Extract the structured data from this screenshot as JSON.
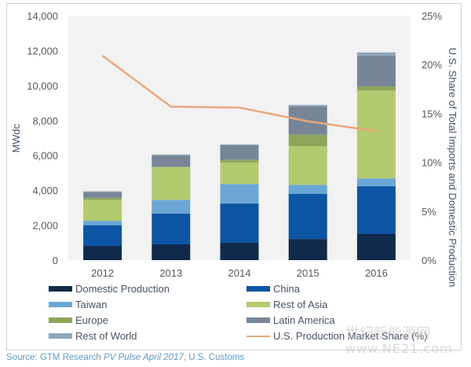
{
  "chart_data": {
    "type": "bar",
    "stacked": true,
    "title": "",
    "categories": [
      "2012",
      "2013",
      "2014",
      "2015",
      "2016"
    ],
    "ylabel": "MWdc",
    "ylim": [
      0,
      14000
    ],
    "yticks": [
      "0",
      "2,000",
      "4,000",
      "6,000",
      "8,000",
      "10,000",
      "12,000",
      "14,000"
    ],
    "y2label": "U.S. Share of Total Imports and Domestic Production",
    "y2lim": [
      0,
      25
    ],
    "y2ticks": [
      "0%",
      "5%",
      "10%",
      "15%",
      "20%",
      "25%"
    ],
    "grid": false,
    "legend_position": "bottom",
    "series": [
      {
        "name": "Domestic Production",
        "color": "#0f2a4a",
        "values": [
          810,
          900,
          990,
          1210,
          1510
        ]
      },
      {
        "name": "China",
        "color": "#0b55a4",
        "values": [
          1190,
          1770,
          2250,
          2590,
          2720
        ]
      },
      {
        "name": "Taiwan",
        "color": "#6aa6d6",
        "values": [
          250,
          780,
          1120,
          510,
          450
        ]
      },
      {
        "name": "Rest of Asia",
        "color": "#b3cb6e",
        "values": [
          1200,
          1870,
          1230,
          2220,
          5030
        ]
      },
      {
        "name": "Europe",
        "color": "#8fa65a",
        "values": [
          120,
          30,
          160,
          660,
          240
        ]
      },
      {
        "name": "Latin America",
        "color": "#768696",
        "values": [
          330,
          640,
          840,
          1620,
          1770
        ]
      },
      {
        "name": "Rest of World",
        "color": "#8fa6bc",
        "values": [
          40,
          60,
          40,
          80,
          180
        ]
      }
    ],
    "line_series": {
      "name": "U.S. Production Market Share (%)",
      "color": "#e8a87c",
      "axis": "right",
      "values": [
        20.9,
        15.7,
        15.6,
        14.2,
        13.2
      ]
    }
  },
  "legend": {
    "items": [
      {
        "label": "Domestic Production",
        "color": "#0f2a4a",
        "kind": "box"
      },
      {
        "label": "China",
        "color": "#0b55a4",
        "kind": "box"
      },
      {
        "label": "Taiwan",
        "color": "#6aa6d6",
        "kind": "box"
      },
      {
        "label": "Rest of Asia",
        "color": "#b3cb6e",
        "kind": "box"
      },
      {
        "label": "Europe",
        "color": "#8fa65a",
        "kind": "box"
      },
      {
        "label": "Latin America",
        "color": "#768696",
        "kind": "box"
      },
      {
        "label": "Rest of World",
        "color": "#8fa6bc",
        "kind": "box"
      },
      {
        "label": "U.S. Production Market Share (%)",
        "color": "#e8a87c",
        "kind": "line"
      }
    ]
  },
  "source": {
    "prefix": "Source: GTM Research ",
    "italic": "PV Pulse April 2017",
    "suffix": ", U.S. Customs"
  },
  "watermark": {
    "line1": "世纪新能源网",
    "line2": "www.NE21.com"
  }
}
